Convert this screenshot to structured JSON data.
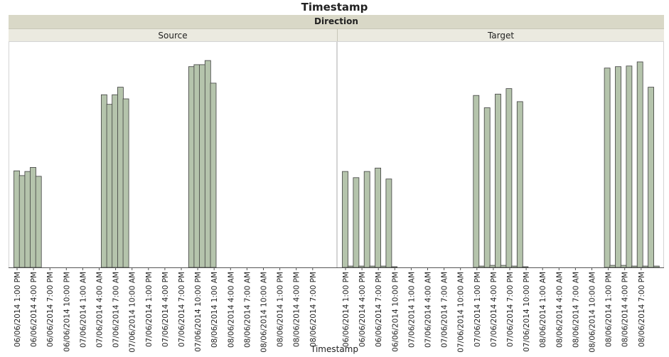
{
  "chart_data": {
    "type": "bar",
    "title": "Timestamp",
    "facet_label": "Direction",
    "xlabel": "Timestamp",
    "categories": [
      "06/06/2014 1:00 PM",
      "06/06/2014 4:00 PM",
      "06/06/2014 7:00 PM",
      "06/06/2014 10:00 PM",
      "07/06/2014 1:00 AM",
      "07/06/2014 4:00 AM",
      "07/06/2014 7:00 AM",
      "07/06/2014 10:00 AM",
      "07/06/2014 1:00 PM",
      "07/06/2014 4:00 PM",
      "07/06/2014 7:00 PM",
      "07/06/2014 10:00 PM",
      "08/06/2014 1:00 AM",
      "08/06/2014 4:00 AM",
      "08/06/2014 7:00 AM",
      "08/06/2014 10:00 AM",
      "08/06/2014 1:00 PM",
      "08/06/2014 4:00 PM",
      "08/06/2014 7:00 PM"
    ],
    "ylim": [
      0,
      300
    ],
    "bar_color": "#b5c4ac",
    "bar_edge_color": "#3f3f3f",
    "panels": [
      {
        "name": "Source",
        "bars": [
          {
            "x": 0,
            "value": 141
          },
          {
            "x": 1,
            "value": 134
          },
          {
            "x": 2,
            "value": 140
          },
          {
            "x": 3,
            "value": 146
          },
          {
            "x": 4,
            "value": 133
          },
          {
            "x": 16,
            "value": 252
          },
          {
            "x": 17,
            "value": 238
          },
          {
            "x": 18,
            "value": 252
          },
          {
            "x": 19,
            "value": 263
          },
          {
            "x": 20,
            "value": 246
          },
          {
            "x": 32,
            "value": 293
          },
          {
            "x": 33,
            "value": 296
          },
          {
            "x": 34,
            "value": 296
          },
          {
            "x": 35,
            "value": 302
          },
          {
            "x": 36,
            "value": 269
          }
        ]
      },
      {
        "name": "Target",
        "bars": [
          {
            "x": 0,
            "value": 140
          },
          {
            "x": 1,
            "value": 2
          },
          {
            "x": 2,
            "value": 131
          },
          {
            "x": 3,
            "value": 2
          },
          {
            "x": 4,
            "value": 140
          },
          {
            "x": 5,
            "value": 2
          },
          {
            "x": 6,
            "value": 145
          },
          {
            "x": 7,
            "value": 2
          },
          {
            "x": 8,
            "value": 129
          },
          {
            "x": 9,
            "value": 1
          },
          {
            "x": 24,
            "value": 251
          },
          {
            "x": 25,
            "value": 2
          },
          {
            "x": 26,
            "value": 233
          },
          {
            "x": 27,
            "value": 3
          },
          {
            "x": 28,
            "value": 253
          },
          {
            "x": 29,
            "value": 3
          },
          {
            "x": 30,
            "value": 261
          },
          {
            "x": 31,
            "value": 2
          },
          {
            "x": 32,
            "value": 242
          },
          {
            "x": 33,
            "value": 1
          },
          {
            "x": 48,
            "value": 291
          },
          {
            "x": 49,
            "value": 3
          },
          {
            "x": 50,
            "value": 293
          },
          {
            "x": 51,
            "value": 3
          },
          {
            "x": 52,
            "value": 294
          },
          {
            "x": 53,
            "value": 2
          },
          {
            "x": 54,
            "value": 300
          },
          {
            "x": 55,
            "value": 2
          },
          {
            "x": 56,
            "value": 263
          },
          {
            "x": 57,
            "value": 2
          }
        ]
      }
    ]
  }
}
